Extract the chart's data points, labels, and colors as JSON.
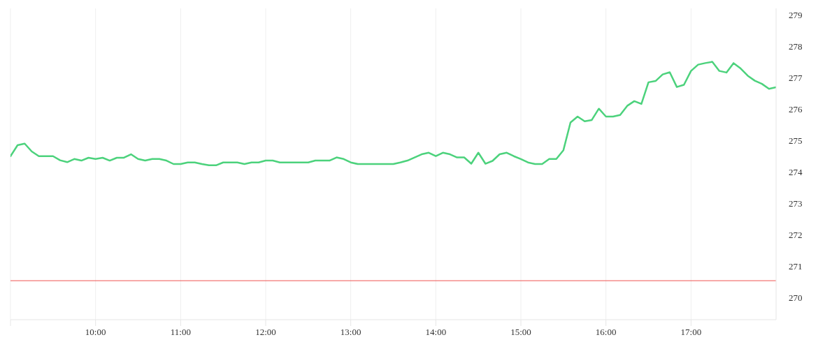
{
  "chart_data": {
    "type": "line",
    "x": [
      9,
      9.0833,
      9.1667,
      9.25,
      9.3333,
      9.4167,
      9.5,
      9.5833,
      9.6667,
      9.75,
      9.8333,
      9.9167,
      10,
      10.0833,
      10.1667,
      10.25,
      10.3333,
      10.4167,
      10.5,
      10.5833,
      10.6667,
      10.75,
      10.8333,
      10.9167,
      11,
      11.0833,
      11.1667,
      11.25,
      11.3333,
      11.4167,
      11.5,
      11.5833,
      11.6667,
      11.75,
      11.8333,
      11.9167,
      12,
      12.0833,
      12.1667,
      12.25,
      12.3333,
      12.4167,
      12.5,
      12.5833,
      12.6667,
      12.75,
      12.8333,
      12.9167,
      13,
      13.0833,
      13.1667,
      13.25,
      13.3333,
      13.4167,
      13.5,
      13.5833,
      13.6667,
      13.75,
      13.8333,
      13.9167,
      14,
      14.0833,
      14.1667,
      14.25,
      14.3333,
      14.4167,
      14.5,
      14.5833,
      14.6667,
      14.75,
      14.8333,
      14.9167,
      15,
      15.0833,
      15.1667,
      15.25,
      15.3333,
      15.4167,
      15.5,
      15.5833,
      15.6667,
      15.75,
      15.8333,
      15.9167,
      16,
      16.0833,
      16.1667,
      16.25,
      16.3333,
      16.4167,
      16.5,
      16.5833,
      16.6667,
      16.75,
      16.8333,
      16.9167,
      17,
      17.0833,
      17.1667,
      17.25,
      17.3333,
      17.4167,
      17.5,
      17.5833,
      17.6667,
      17.75,
      17.8333,
      17.9167,
      18
    ],
    "values": [
      274.5,
      274.85,
      274.9,
      274.65,
      274.5,
      274.5,
      274.5,
      274.37,
      274.31,
      274.41,
      274.36,
      274.45,
      274.41,
      274.45,
      274.36,
      274.45,
      274.45,
      274.56,
      274.41,
      274.36,
      274.41,
      274.41,
      274.36,
      274.25,
      274.25,
      274.3,
      274.3,
      274.25,
      274.21,
      274.21,
      274.3,
      274.3,
      274.3,
      274.25,
      274.3,
      274.3,
      274.36,
      274.36,
      274.3,
      274.3,
      274.3,
      274.3,
      274.3,
      274.36,
      274.36,
      274.36,
      274.46,
      274.41,
      274.3,
      274.25,
      274.25,
      274.25,
      274.25,
      274.25,
      274.25,
      274.3,
      274.36,
      274.46,
      274.56,
      274.61,
      274.5,
      274.61,
      274.56,
      274.46,
      274.46,
      274.26,
      274.61,
      274.26,
      274.35,
      274.56,
      274.61,
      274.5,
      274.41,
      274.3,
      274.25,
      274.25,
      274.41,
      274.41,
      274.69,
      275.57,
      275.76,
      275.61,
      275.65,
      276.01,
      275.76,
      275.76,
      275.81,
      276.1,
      276.25,
      276.16,
      276.85,
      276.89,
      277.1,
      277.17,
      276.7,
      276.77,
      277.21,
      277.41,
      277.46,
      277.5,
      277.21,
      277.16,
      277.46,
      277.29,
      277.06,
      276.9,
      276.8,
      276.64,
      276.69
    ],
    "color": "#4cd27c",
    "xlim": [
      9,
      18
    ],
    "xticks": [
      {
        "value": 9,
        "label": null
      },
      {
        "value": 10,
        "label": "10:00"
      },
      {
        "value": 11,
        "label": "11:00"
      },
      {
        "value": 12,
        "label": "12:00"
      },
      {
        "value": 13,
        "label": "13:00"
      },
      {
        "value": 14,
        "label": "14:00"
      },
      {
        "value": 15,
        "label": "15:00"
      },
      {
        "value": 16,
        "label": "16:00"
      },
      {
        "value": 17,
        "label": "17:00"
      }
    ],
    "ylim": [
      269.3,
      279.2
    ],
    "yticks": [
      270,
      271,
      272,
      273,
      274,
      275,
      276,
      277,
      278,
      279
    ],
    "ref_lines": [
      {
        "axis": "y",
        "value": 270.54,
        "color": "#ef5350"
      }
    ],
    "grid": true
  }
}
